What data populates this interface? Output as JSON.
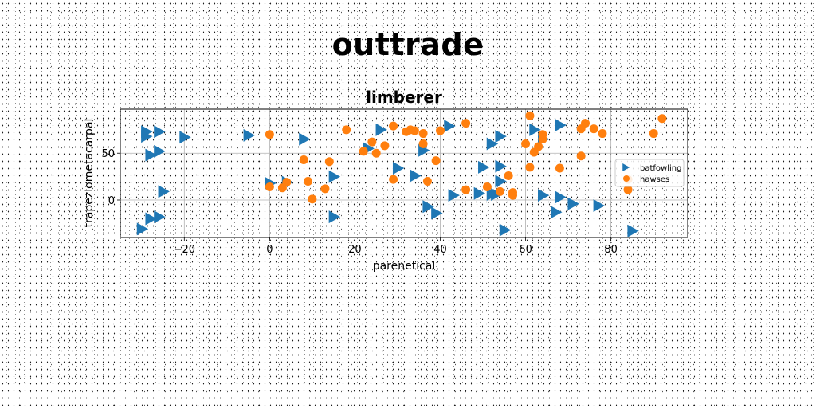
{
  "figure_title": "outtrade",
  "chart_data": {
    "type": "scatter",
    "title": "limberer",
    "xlabel": "parenetical",
    "ylabel": "trapeziometacarpal",
    "xlim": [
      -35,
      98
    ],
    "ylim": [
      -40,
      97
    ],
    "xticks": [
      -20,
      0,
      20,
      40,
      60,
      80
    ],
    "yticks": [
      0,
      50
    ],
    "grid": true,
    "legend_position": "center-right",
    "series": [
      {
        "name": "batfowling",
        "marker": "triangle-right",
        "color": "#1f77b4",
        "points": [
          [
            -30,
            -31
          ],
          [
            -29,
            73
          ],
          [
            -29,
            68
          ],
          [
            -28,
            -20
          ],
          [
            -28,
            48
          ],
          [
            -26,
            73
          ],
          [
            -26,
            52
          ],
          [
            -26,
            -18
          ],
          [
            -25,
            9
          ],
          [
            -20,
            67
          ],
          [
            -5,
            69
          ],
          [
            0,
            18
          ],
          [
            4,
            19
          ],
          [
            8,
            65
          ],
          [
            15,
            25
          ],
          [
            15,
            -18
          ],
          [
            23,
            55
          ],
          [
            26,
            75
          ],
          [
            30,
            34
          ],
          [
            34,
            26
          ],
          [
            36,
            53
          ],
          [
            37,
            -7
          ],
          [
            39,
            -14
          ],
          [
            42,
            79
          ],
          [
            43,
            5
          ],
          [
            49,
            7
          ],
          [
            50,
            35
          ],
          [
            52,
            6
          ],
          [
            52,
            60
          ],
          [
            53,
            6
          ],
          [
            54,
            36
          ],
          [
            54,
            68
          ],
          [
            54,
            20
          ],
          [
            55,
            -32
          ],
          [
            62,
            75
          ],
          [
            64,
            65
          ],
          [
            64,
            5
          ],
          [
            67,
            -13
          ],
          [
            68,
            80
          ],
          [
            68,
            3
          ],
          [
            71,
            -4
          ],
          [
            77,
            -6
          ],
          [
            85,
            -33
          ]
        ]
      },
      {
        "name": "hawses",
        "marker": "circle",
        "color": "#ff7f0e",
        "points": [
          [
            0,
            14
          ],
          [
            0,
            70
          ],
          [
            3,
            13
          ],
          [
            4,
            19
          ],
          [
            8,
            43
          ],
          [
            9,
            20
          ],
          [
            10,
            1
          ],
          [
            13,
            12
          ],
          [
            14,
            41
          ],
          [
            18,
            75
          ],
          [
            22,
            52
          ],
          [
            24,
            62
          ],
          [
            25,
            50
          ],
          [
            27,
            58
          ],
          [
            29,
            22
          ],
          [
            29,
            79
          ],
          [
            32,
            73
          ],
          [
            33,
            75
          ],
          [
            34,
            74
          ],
          [
            36,
            60
          ],
          [
            36,
            71
          ],
          [
            37,
            20
          ],
          [
            39,
            42
          ],
          [
            40,
            74
          ],
          [
            46,
            11
          ],
          [
            46,
            82
          ],
          [
            51,
            14
          ],
          [
            54,
            9
          ],
          [
            56,
            26
          ],
          [
            57,
            5
          ],
          [
            57,
            8
          ],
          [
            60,
            60
          ],
          [
            61,
            35
          ],
          [
            61,
            90
          ],
          [
            62,
            51
          ],
          [
            63,
            57
          ],
          [
            64,
            65
          ],
          [
            64,
            70
          ],
          [
            68,
            34
          ],
          [
            73,
            47
          ],
          [
            73,
            76
          ],
          [
            74,
            82
          ],
          [
            76,
            76
          ],
          [
            78,
            71
          ],
          [
            84,
            11
          ],
          [
            84,
            22
          ],
          [
            90,
            71
          ],
          [
            92,
            87
          ]
        ]
      }
    ]
  }
}
